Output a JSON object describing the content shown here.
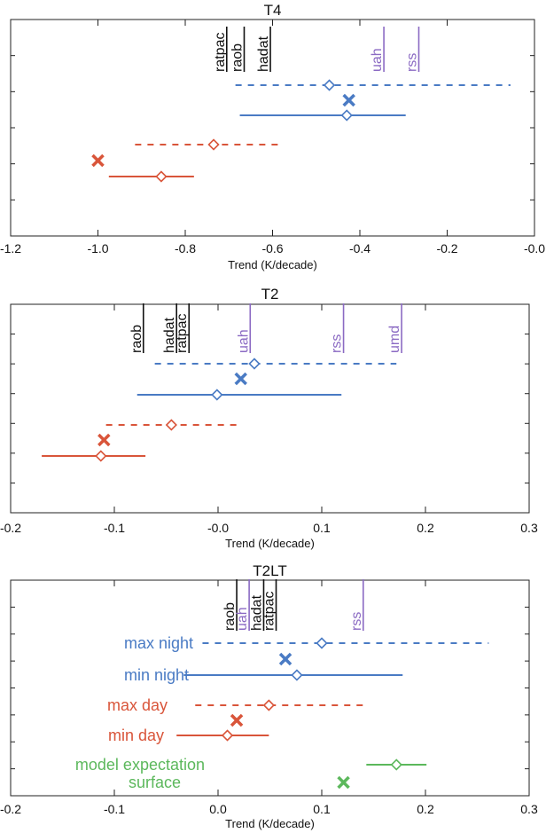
{
  "colors": {
    "blue": "#4a7bc4",
    "orange": "#d9553a",
    "purple": "#8b6ac3",
    "green": "#5cb85c",
    "black": "#111111"
  },
  "chart_data": [
    {
      "type": "scatter",
      "title": "T4",
      "xlabel": "Trend (K/decade)",
      "xlim": [
        -1.2,
        0.0
      ],
      "xticks": [
        "-1.2",
        "-1.0",
        "-0.8",
        "-0.6",
        "-0.4",
        "-0.2",
        "-0.0"
      ],
      "datasets": [
        {
          "label": "ratpac",
          "x": -0.705,
          "color": "black"
        },
        {
          "label": "raob",
          "x": -0.665,
          "color": "black"
        },
        {
          "label": "hadat",
          "x": -0.605,
          "color": "black"
        },
        {
          "label": "uah",
          "x": -0.345,
          "color": "purple"
        },
        {
          "label": "rss",
          "x": -0.265,
          "color": "purple"
        }
      ],
      "rows": [
        {
          "style": "dashed",
          "color": "blue",
          "low": -0.685,
          "high": -0.055,
          "center": -0.47
        },
        {
          "style": "cross",
          "color": "blue",
          "center": -0.425
        },
        {
          "style": "solid",
          "color": "blue",
          "low": -0.675,
          "high": -0.295,
          "center": -0.43
        },
        {
          "style": "dashed",
          "color": "orange",
          "low": -0.915,
          "high": -0.585,
          "center": -0.735
        },
        {
          "style": "cross",
          "color": "orange",
          "center": -1.0
        },
        {
          "style": "solid",
          "color": "orange",
          "low": -0.975,
          "high": -0.78,
          "center": -0.855
        }
      ]
    },
    {
      "type": "scatter",
      "title": "T2",
      "xlabel": "Trend (K/decade)",
      "xlim": [
        -0.2,
        0.3
      ],
      "xticks": [
        "-0.2",
        "-0.1",
        "-0.0",
        "0.1",
        "0.2",
        "0.3"
      ],
      "datasets": [
        {
          "label": "raob",
          "x": -0.072,
          "color": "black"
        },
        {
          "label": "hadat",
          "x": -0.04,
          "color": "black"
        },
        {
          "label": "ratpac",
          "x": -0.028,
          "color": "black"
        },
        {
          "label": "uah",
          "x": 0.031,
          "color": "purple"
        },
        {
          "label": "rss",
          "x": 0.121,
          "color": "purple"
        },
        {
          "label": "umd",
          "x": 0.177,
          "color": "purple"
        }
      ],
      "rows": [
        {
          "style": "dashed",
          "color": "blue",
          "low": -0.061,
          "high": 0.172,
          "center": 0.035
        },
        {
          "style": "cross",
          "color": "blue",
          "center": 0.022
        },
        {
          "style": "solid",
          "color": "blue",
          "low": -0.078,
          "high": 0.119,
          "center": -0.001
        },
        {
          "style": "dashed",
          "color": "orange",
          "low": -0.108,
          "high": 0.019,
          "center": -0.045
        },
        {
          "style": "cross",
          "color": "orange",
          "center": -0.11
        },
        {
          "style": "solid",
          "color": "orange",
          "low": -0.17,
          "high": -0.07,
          "center": -0.113
        }
      ]
    },
    {
      "type": "scatter",
      "title": "T2LT",
      "xlabel": "Trend (K/decade)",
      "xlim": [
        -0.2,
        0.3
      ],
      "xticks": [
        "-0.2",
        "-0.1",
        "0.0",
        "0.1",
        "0.2",
        "0.3"
      ],
      "datasets": [
        {
          "label": "raob",
          "x": 0.018,
          "color": "black"
        },
        {
          "label": "uah",
          "x": 0.03,
          "color": "purple"
        },
        {
          "label": "hadat",
          "x": 0.044,
          "color": "black"
        },
        {
          "label": "ratpac",
          "x": 0.056,
          "color": "black"
        },
        {
          "label": "rss",
          "x": 0.14,
          "color": "purple"
        }
      ],
      "rows": [
        {
          "style": "dashed",
          "color": "blue",
          "low": -0.015,
          "high": 0.261,
          "center": 0.1,
          "label": "max night"
        },
        {
          "style": "cross",
          "color": "blue",
          "center": 0.065
        },
        {
          "style": "solid",
          "color": "blue",
          "low": -0.033,
          "high": 0.178,
          "center": 0.076,
          "label": "min night"
        },
        {
          "style": "dashed",
          "color": "orange",
          "low": -0.022,
          "high": 0.145,
          "center": 0.049,
          "label": "max day"
        },
        {
          "style": "cross",
          "color": "orange",
          "center": 0.018
        },
        {
          "style": "solid",
          "color": "orange",
          "low": -0.04,
          "high": 0.049,
          "center": 0.009,
          "label": "min day"
        },
        {
          "style": "solid",
          "color": "green",
          "low": 0.143,
          "high": 0.201,
          "center": 0.172,
          "label": "model expectation"
        },
        {
          "style": "cross",
          "color": "green",
          "center": 0.121,
          "label": "surface"
        }
      ]
    }
  ]
}
